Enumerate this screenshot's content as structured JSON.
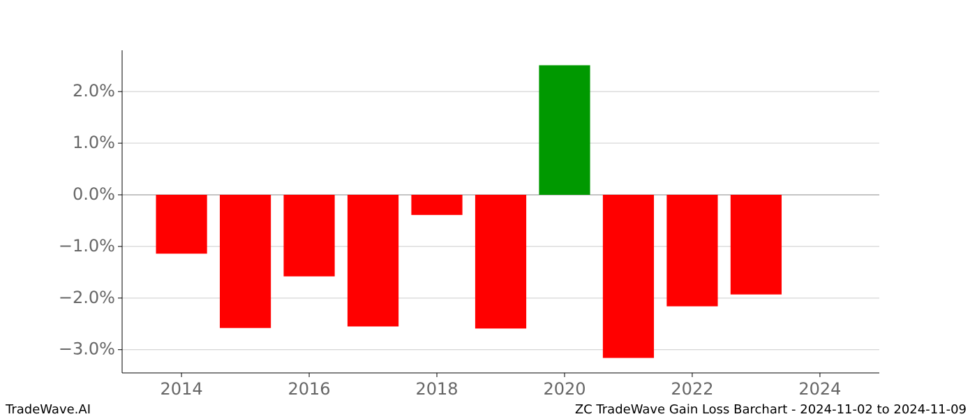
{
  "chart_data": {
    "type": "bar",
    "x": [
      2014,
      2015,
      2016,
      2017,
      2018,
      2019,
      2020,
      2021,
      2022,
      2023
    ],
    "values": [
      -1.14,
      -2.58,
      -1.58,
      -2.55,
      -0.39,
      -2.59,
      2.51,
      -3.16,
      -2.16,
      -1.93
    ],
    "colors": [
      "#ff0000",
      "#ff0000",
      "#ff0000",
      "#ff0000",
      "#ff0000",
      "#ff0000",
      "#009900",
      "#ff0000",
      "#ff0000",
      "#ff0000"
    ],
    "xlim": [
      2013.07,
      2024.93
    ],
    "xticks": [
      2014,
      2016,
      2018,
      2020,
      2022,
      2024
    ],
    "ylim": [
      -3.45,
      2.8
    ],
    "yticks": [
      {
        "value": -3,
        "label": "−3.0%"
      },
      {
        "value": -2,
        "label": "−2.0%"
      },
      {
        "value": -1,
        "label": "−1.0%"
      },
      {
        "value": 0,
        "label": "0.0%"
      },
      {
        "value": 1,
        "label": "1.0%"
      },
      {
        "value": 2,
        "label": "2.0%"
      }
    ],
    "grid": true,
    "footer_left": "TradeWave.AI",
    "footer_right": "ZC TradeWave Gain Loss Barchart - 2024-11-02 to 2024-11-09"
  }
}
